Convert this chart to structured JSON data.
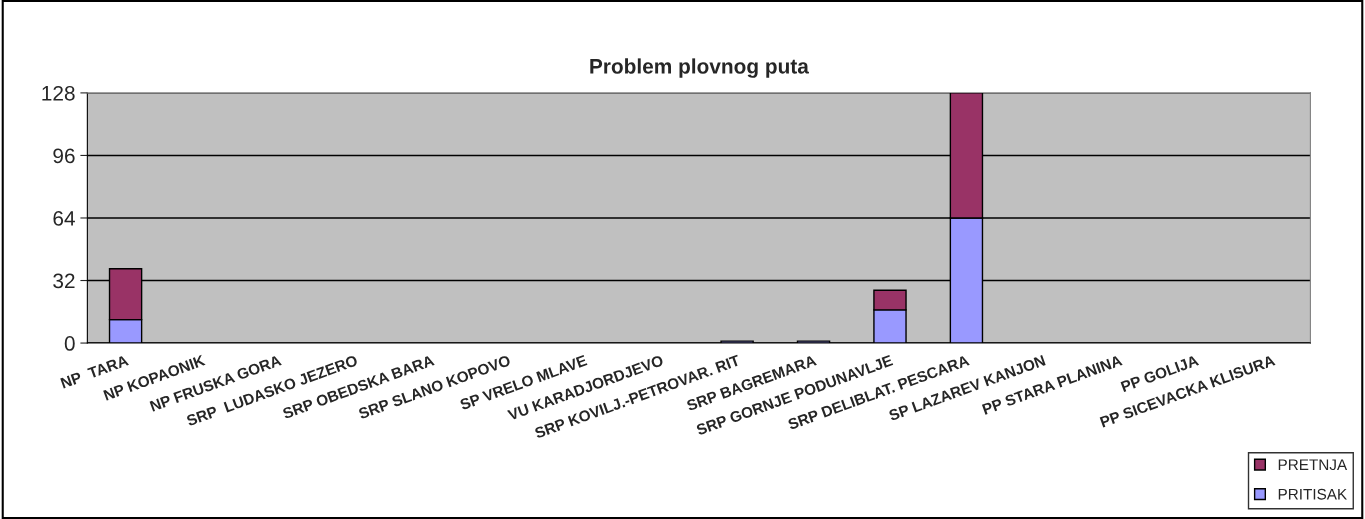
{
  "chart_data": {
    "type": "bar",
    "title": "Problem plovnog puta",
    "stacked": true,
    "categories": [
      "NP  TARA",
      "NP KOPAONIK",
      "NP FRUSKA GORA",
      "SRP  LUDASKO JEZERO",
      "SRP OBEDSKA BARA",
      "SRP SLANO KOPOVO",
      "SP VRELO MLAVE",
      "VU KARADJORDJEVO",
      "SRP KOVILJ.-PETROVAR. RIT",
      "SRP BAGREMARA",
      "SRP GORNJE PODUNAVLJE",
      "SRP DELIBLAT. PESCARA",
      "SP LAZAREV KANJON",
      "PP STARA PLANINA",
      "PP GOLIJA",
      "PP SICEVACKA KLISURA"
    ],
    "series": [
      {
        "name": "PRITISAK",
        "color": "#9999ff",
        "values": [
          12,
          null,
          null,
          null,
          null,
          null,
          null,
          null,
          1,
          1,
          17,
          64,
          null,
          null,
          null,
          null
        ]
      },
      {
        "name": "PRETNJA",
        "color": "#993366",
        "values": [
          26,
          null,
          null,
          null,
          null,
          null,
          null,
          null,
          null,
          null,
          10,
          64,
          null,
          null,
          null,
          null
        ]
      }
    ],
    "ylim": [
      0,
      128
    ],
    "yticks": [
      0,
      32,
      64,
      96,
      128
    ],
    "grid": "y",
    "legend": "bottom right"
  }
}
